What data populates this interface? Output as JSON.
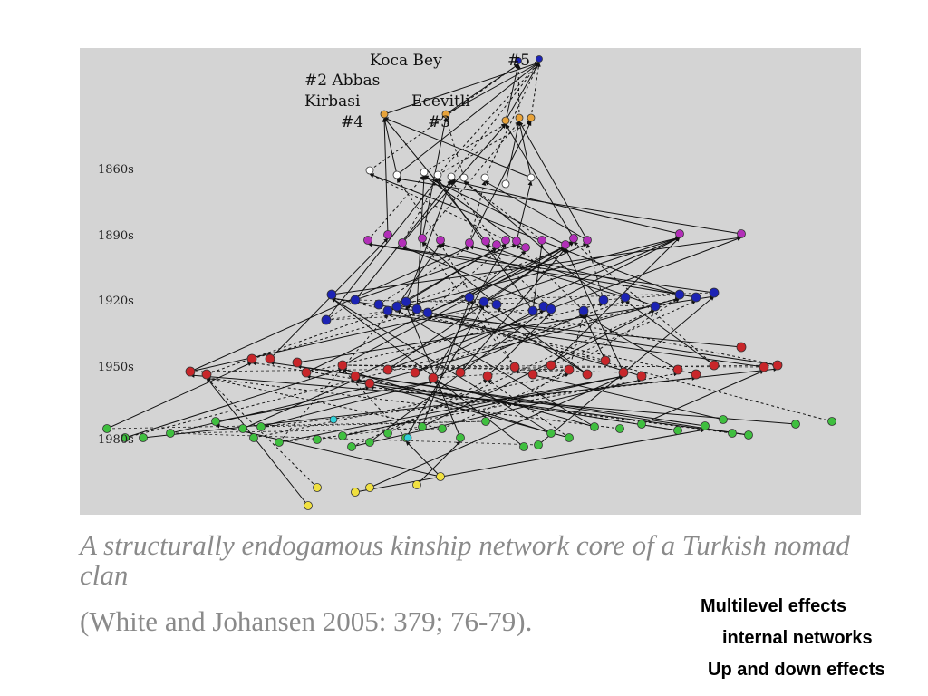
{
  "diagram": {
    "decade_labels": [
      "1860s",
      "1890s",
      "1920s",
      "1950s",
      "1980s"
    ],
    "lineage_labels": [
      "Koca Bey",
      "#5",
      "#2 Abbas",
      "Kirbasi",
      "#4",
      "Ecevitli",
      "#3"
    ],
    "node_colors": {
      "founders": "#e8a33a",
      "1860s": "#ffffff",
      "1890s": "#b22fb8",
      "1920s": "#1c23b4",
      "1950s": "#c8262a",
      "1980s": "#3fbf3f",
      "youngest": "#f0e040",
      "cyan": "#30d0d8",
      "top_blue": "#1c23b4"
    }
  },
  "caption": {
    "title": "A structurally endogamous kinship network core of a Turkish nomad clan",
    "citation": "(White and Johansen 2005: 379; 76-79)."
  },
  "notes": [
    "Multilevel effects",
    "internal networks",
    "Up and down effects"
  ]
}
